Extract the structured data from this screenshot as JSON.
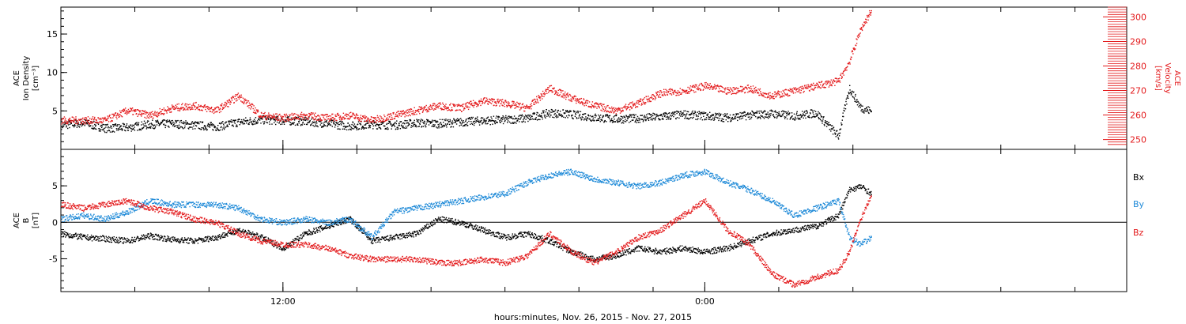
{
  "chart_data": [
    {
      "type": "scatter",
      "panel": "top",
      "ylabel": {
        "line1": "ACE",
        "line2": "Ion Density",
        "line3": "[cm⁻³]"
      },
      "y2label": {
        "line1": "ACE",
        "line2": "Velocity",
        "line3": "[km/s]"
      },
      "ylim": [
        0,
        18.5
      ],
      "yticks": [
        5,
        10,
        15
      ],
      "y2lim": [
        246,
        304
      ],
      "y2ticks": [
        250,
        260,
        270,
        280,
        290,
        300
      ],
      "series": [
        {
          "color": "#000000",
          "axis": "left",
          "points": [
            [
              0,
              3.2
            ],
            [
              1,
              3.5
            ],
            [
              2,
              2.8
            ],
            [
              3,
              2.9
            ],
            [
              4,
              3.3
            ],
            [
              5,
              3.4
            ],
            [
              6,
              3.2
            ],
            [
              7,
              3.0
            ],
            [
              8,
              3.6
            ],
            [
              9,
              3.9
            ],
            [
              10,
              3.8
            ],
            [
              11,
              3.7
            ],
            [
              12,
              3.4
            ],
            [
              13,
              3.1
            ],
            [
              14,
              3.3
            ],
            [
              15,
              3.2
            ],
            [
              16,
              3.5
            ],
            [
              17,
              3.4
            ],
            [
              18,
              3.6
            ],
            [
              19,
              3.8
            ],
            [
              20,
              3.9
            ],
            [
              21,
              4.1
            ],
            [
              22,
              4.8
            ],
            [
              23,
              4.6
            ],
            [
              24,
              4.2
            ],
            [
              25,
              4.0
            ],
            [
              26,
              4.1
            ],
            [
              27,
              4.3
            ],
            [
              28,
              4.6
            ],
            [
              29,
              4.4
            ],
            [
              30,
              4.2
            ],
            [
              31,
              4.5
            ],
            [
              32,
              4.7
            ],
            [
              33,
              4.4
            ],
            [
              34,
              4.8
            ],
            [
              35,
              1.8
            ],
            [
              35.5,
              8.0
            ],
            [
              36,
              5.5
            ],
            [
              36.5,
              5.0
            ]
          ]
        },
        {
          "color": "#e31a1c",
          "axis": "right",
          "points": [
            [
              0,
              258
            ],
            [
              1,
              258
            ],
            [
              2,
              258
            ],
            [
              3,
              262
            ],
            [
              4,
              260
            ],
            [
              5,
              263
            ],
            [
              6,
              264
            ],
            [
              7,
              262
            ],
            [
              8,
              268
            ],
            [
              9,
              260
            ],
            [
              10,
              259
            ],
            [
              11,
              260
            ],
            [
              12,
              259
            ],
            [
              13,
              260
            ],
            [
              14,
              258
            ],
            [
              15,
              260
            ],
            [
              16,
              262
            ],
            [
              17,
              264
            ],
            [
              18,
              263
            ],
            [
              19,
              266
            ],
            [
              20,
              265
            ],
            [
              21,
              263
            ],
            [
              22,
              271
            ],
            [
              23,
              267
            ],
            [
              24,
              264
            ],
            [
              25,
              262
            ],
            [
              26,
              265
            ],
            [
              27,
              269
            ],
            [
              28,
              270
            ],
            [
              29,
              272
            ],
            [
              30,
              270
            ],
            [
              31,
              271
            ],
            [
              32,
              268
            ],
            [
              33,
              270
            ],
            [
              34,
              272
            ],
            [
              35,
              274
            ],
            [
              35.5,
              282
            ],
            [
              36,
              295
            ],
            [
              36.5,
              303
            ]
          ]
        }
      ]
    },
    {
      "type": "scatter",
      "panel": "bottom",
      "ylabel": {
        "line1": "ACE",
        "line2": "B",
        "line3": "[nT]"
      },
      "ylim": [
        -9.5,
        10
      ],
      "yticks": [
        -5,
        0,
        5
      ],
      "legend": [
        "Bx",
        "By",
        "Bz"
      ],
      "legend_placement": "right",
      "series": [
        {
          "name": "Bx",
          "color": "#000000",
          "points": [
            [
              0,
              -1.5
            ],
            [
              1,
              -2.0
            ],
            [
              2,
              -2.2
            ],
            [
              3,
              -2.5
            ],
            [
              4,
              -1.8
            ],
            [
              5,
              -2.3
            ],
            [
              6,
              -2.5
            ],
            [
              7,
              -2.0
            ],
            [
              8,
              -1.0
            ],
            [
              9,
              -2.0
            ],
            [
              10,
              -3.5
            ],
            [
              11,
              -1.5
            ],
            [
              12,
              -0.5
            ],
            [
              13,
              0.5
            ],
            [
              14,
              -2.5
            ],
            [
              15,
              -2.0
            ],
            [
              16,
              -1.5
            ],
            [
              17,
              0.5
            ],
            [
              18,
              0.0
            ],
            [
              19,
              -1.0
            ],
            [
              20,
              -2.0
            ],
            [
              21,
              -1.5
            ],
            [
              22,
              -2.5
            ],
            [
              23,
              -4.0
            ],
            [
              24,
              -5.0
            ],
            [
              25,
              -4.5
            ],
            [
              26,
              -3.5
            ],
            [
              27,
              -4.0
            ],
            [
              28,
              -3.5
            ],
            [
              29,
              -4.0
            ],
            [
              30,
              -3.5
            ],
            [
              31,
              -2.5
            ],
            [
              32,
              -1.5
            ],
            [
              33,
              -1.0
            ],
            [
              34,
              -0.5
            ],
            [
              35,
              1.0
            ],
            [
              35.5,
              4.5
            ],
            [
              36,
              5.0
            ],
            [
              36.5,
              4.0
            ]
          ]
        },
        {
          "name": "By",
          "color": "#1f8ad8",
          "points": [
            [
              0,
              0.5
            ],
            [
              1,
              1.0
            ],
            [
              2,
              0.5
            ],
            [
              3,
              1.5
            ],
            [
              4,
              3.0
            ],
            [
              5,
              2.5
            ],
            [
              6,
              2.5
            ],
            [
              7,
              2.5
            ],
            [
              8,
              2.0
            ],
            [
              9,
              0.5
            ],
            [
              10,
              0.0
            ],
            [
              11,
              0.5
            ],
            [
              12,
              0.0
            ],
            [
              13,
              0.5
            ],
            [
              14,
              -2.0
            ],
            [
              15,
              1.5
            ],
            [
              16,
              2.0
            ],
            [
              17,
              2.5
            ],
            [
              18,
              3.0
            ],
            [
              19,
              3.5
            ],
            [
              20,
              4.0
            ],
            [
              21,
              5.5
            ],
            [
              22,
              6.5
            ],
            [
              23,
              7.0
            ],
            [
              24,
              6.0
            ],
            [
              25,
              5.5
            ],
            [
              26,
              5.0
            ],
            [
              27,
              5.5
            ],
            [
              28,
              6.5
            ],
            [
              29,
              7.0
            ],
            [
              30,
              5.5
            ],
            [
              31,
              4.5
            ],
            [
              32,
              3.0
            ],
            [
              33,
              1.0
            ],
            [
              34,
              2.0
            ],
            [
              35,
              3.0
            ],
            [
              35.5,
              -2.0
            ],
            [
              36,
              -3.0
            ],
            [
              36.5,
              -2.0
            ]
          ]
        },
        {
          "name": "Bz",
          "color": "#e31a1c",
          "points": [
            [
              0,
              2.5
            ],
            [
              1,
              2.0
            ],
            [
              2,
              2.5
            ],
            [
              3,
              3.0
            ],
            [
              4,
              2.0
            ],
            [
              5,
              1.5
            ],
            [
              6,
              0.5
            ],
            [
              7,
              0.0
            ],
            [
              8,
              -1.5
            ],
            [
              9,
              -2.5
            ],
            [
              10,
              -3.0
            ],
            [
              11,
              -3.0
            ],
            [
              12,
              -3.5
            ],
            [
              13,
              -4.5
            ],
            [
              14,
              -5.0
            ],
            [
              15,
              -5.0
            ],
            [
              16,
              -5.0
            ],
            [
              17,
              -5.5
            ],
            [
              18,
              -5.5
            ],
            [
              19,
              -5.0
            ],
            [
              20,
              -5.5
            ],
            [
              21,
              -4.5
            ],
            [
              22,
              -1.5
            ],
            [
              23,
              -4.0
            ],
            [
              24,
              -5.5
            ],
            [
              25,
              -4.0
            ],
            [
              26,
              -2.0
            ],
            [
              27,
              -1.0
            ],
            [
              28,
              1.0
            ],
            [
              29,
              3.0
            ],
            [
              30,
              -1.0
            ],
            [
              31,
              -3.0
            ],
            [
              32,
              -7.0
            ],
            [
              33,
              -8.5
            ],
            [
              34,
              -7.5
            ],
            [
              35,
              -6.5
            ],
            [
              35.5,
              -4.0
            ],
            [
              36,
              0.5
            ],
            [
              36.5,
              4.0
            ]
          ]
        }
      ]
    }
  ],
  "xaxis": {
    "label": "hours:minutes, Nov. 26, 2015 - Nov. 27, 2015",
    "range_hours": [
      0,
      48
    ],
    "tick_labels": [
      {
        "hour": 10,
        "label": "12:00"
      },
      {
        "hour": 29,
        "label": "0:00"
      }
    ],
    "minor_tick_hours": [
      0,
      3.33,
      6.67,
      10,
      13.33,
      16.67,
      20,
      23.33,
      26.67,
      29,
      32.33,
      35.67,
      39,
      42.33,
      45.67
    ]
  },
  "colors": {
    "black": "#000000",
    "red": "#e31a1c",
    "blue": "#1f8ad8"
  }
}
